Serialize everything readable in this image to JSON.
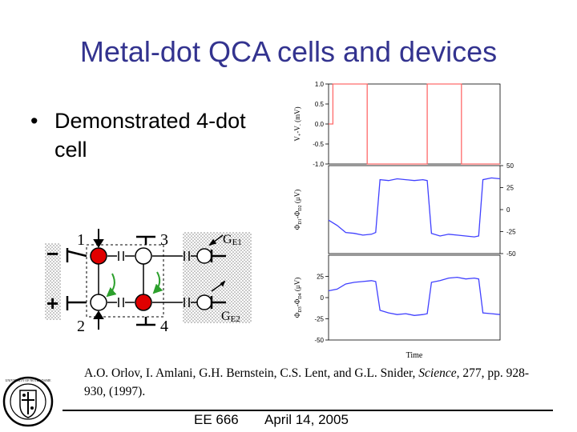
{
  "slide": {
    "title": "Metal-dot QCA cells and devices",
    "bullet_symbol": "•",
    "bullet_line1": "Demonstrated 4-dot",
    "bullet_line2": "cell"
  },
  "schematic": {
    "dot_labels": [
      "1",
      "3",
      "2",
      "4"
    ],
    "gate_labels": {
      "ge1_main": "G",
      "ge1_sub": "E1",
      "ge2_main": "G",
      "ge2_sub": "E2"
    },
    "polarity_labels": [
      "−",
      "+"
    ],
    "colors": {
      "occupied_dot": "#e00000",
      "empty_dot": "#ffffff",
      "arrow": "#2ca02c"
    }
  },
  "chart_data": [
    {
      "type": "line",
      "panel": "input",
      "ylabel": "V+-V- (mV)",
      "ylabel_main": "V",
      "ylabel_sub1": "+",
      "ylabel_mid": "-V",
      "ylabel_sub2": "-",
      "ylabel_unit": "(mV)",
      "yticks": [
        "1.0",
        "0.5",
        "0.0",
        "-0.5",
        "-1.0"
      ],
      "ylim": [
        -1.0,
        1.0
      ],
      "color": "#ff6a6a",
      "x": [
        0,
        0.5,
        0.5,
        4.5,
        4.5,
        11.5,
        11.5,
        15.5,
        15.5,
        20
      ],
      "y": [
        0,
        0,
        1,
        1,
        -1,
        -1,
        1,
        1,
        -1,
        -1
      ]
    },
    {
      "type": "line",
      "panel": "output-1",
      "ylabel": "Φ_D1-Φ_D2 (μV)",
      "ylabel_main": "Φ",
      "ylabel_sub1": "D1",
      "ylabel_mid": "-Φ",
      "ylabel_sub2": "D2",
      "ylabel_unit": "(μV)",
      "yticks_right": [
        "50",
        "25",
        "0",
        "-25",
        "-50"
      ],
      "ylim": [
        -50,
        50
      ],
      "color": "#4040ff",
      "x": [
        0,
        1,
        2,
        3,
        4,
        5,
        5.5,
        6,
        7,
        8,
        9,
        10,
        11,
        11.5,
        12,
        13,
        14,
        15,
        16,
        17,
        17.5,
        18,
        19,
        20
      ],
      "y": [
        -12,
        -18,
        -26,
        -27,
        -29,
        -28,
        -26,
        34,
        33,
        35,
        34,
        33,
        34,
        33,
        -27,
        -30,
        -28,
        -29,
        -30,
        -31,
        -30,
        34,
        36,
        35
      ]
    },
    {
      "type": "line",
      "panel": "output-2",
      "ylabel": "Φ_D3-Φ_D4 (μV)",
      "ylabel_main": "Φ",
      "ylabel_sub1": "D3",
      "ylabel_mid": "-Φ",
      "ylabel_sub2": "D4",
      "ylabel_unit": "(μV)",
      "yticks": [
        "25",
        "0",
        "-25",
        "-50"
      ],
      "ylim": [
        -50,
        50
      ],
      "color": "#4040ff",
      "x": [
        0,
        1,
        2,
        3,
        4,
        5,
        5.5,
        6,
        7,
        8,
        9,
        10,
        11,
        11.5,
        12,
        13,
        14,
        15,
        16,
        17,
        17.5,
        18,
        19,
        20
      ],
      "y": [
        8,
        10,
        16,
        18,
        19,
        20,
        19,
        -15,
        -18,
        -20,
        -19,
        -21,
        -20,
        -19,
        18,
        20,
        23,
        24,
        22,
        23,
        22,
        -18,
        -19,
        -20
      ],
      "xlabel": "Time"
    }
  ],
  "citation": {
    "authors": "A.O. Orlov, I. Amlani, G.H. Bernstein, C.S. Lent, and G.L. Snider, ",
    "journal": "Science",
    "details": ", 277, pp. 928-930, (1997)."
  },
  "footer": {
    "course": "EE 666",
    "date": "April 14, 2005"
  },
  "logo": {
    "text": "UNIVERSITY OF NOTRE DAME"
  }
}
